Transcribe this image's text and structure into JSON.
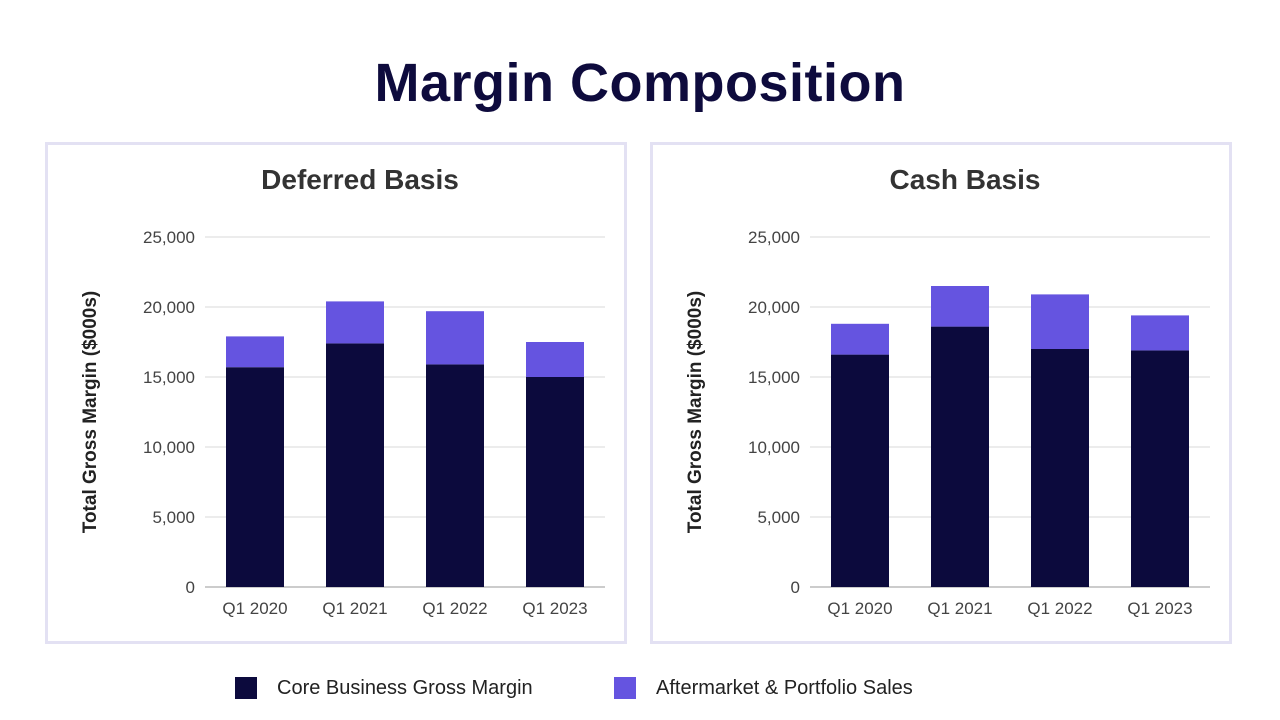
{
  "title": "Margin Composition",
  "colors": {
    "core": "#0c0a3d",
    "aftermarket": "#6554e0",
    "grid": "#d9d9d9",
    "axis_text": "#444444",
    "title": "#0e0b3d"
  },
  "legend": {
    "items": [
      {
        "label": "Core Business Gross Margin",
        "color": "#0c0a3d"
      },
      {
        "label": "Aftermarket & Portfolio Sales",
        "color": "#6554e0"
      }
    ]
  },
  "chart_data": [
    {
      "type": "bar",
      "stacked": true,
      "title": "Deferred Basis",
      "ylabel": "Total Gross Margin ($000s)",
      "xlabel": "",
      "categories": [
        "Q1 2020",
        "Q1 2021",
        "Q1 2022",
        "Q1 2023"
      ],
      "series": [
        {
          "name": "Core Business Gross Margin",
          "values": [
            15700,
            17400,
            15900,
            15000
          ]
        },
        {
          "name": "Aftermarket & Portfolio Sales",
          "values": [
            2200,
            3000,
            3800,
            2500
          ]
        }
      ],
      "ylim": [
        0,
        25000
      ],
      "yticks": [
        0,
        5000,
        10000,
        15000,
        20000,
        25000
      ],
      "ytick_labels": [
        "0",
        "5,000",
        "10,000",
        "15,000",
        "20,000",
        "25,000"
      ],
      "grid": true,
      "legend": "bottom"
    },
    {
      "type": "bar",
      "stacked": true,
      "title": "Cash Basis",
      "ylabel": "Total Gross Margin ($000s)",
      "xlabel": "",
      "categories": [
        "Q1 2020",
        "Q1 2021",
        "Q1 2022",
        "Q1 2023"
      ],
      "series": [
        {
          "name": "Core Business Gross Margin",
          "values": [
            16600,
            18600,
            17000,
            16900
          ]
        },
        {
          "name": "Aftermarket & Portfolio Sales",
          "values": [
            2200,
            2900,
            3900,
            2500
          ]
        }
      ],
      "ylim": [
        0,
        25000
      ],
      "yticks": [
        0,
        5000,
        10000,
        15000,
        20000,
        25000
      ],
      "ytick_labels": [
        "0",
        "5,000",
        "10,000",
        "15,000",
        "20,000",
        "25,000"
      ],
      "grid": true,
      "legend": "bottom"
    }
  ]
}
